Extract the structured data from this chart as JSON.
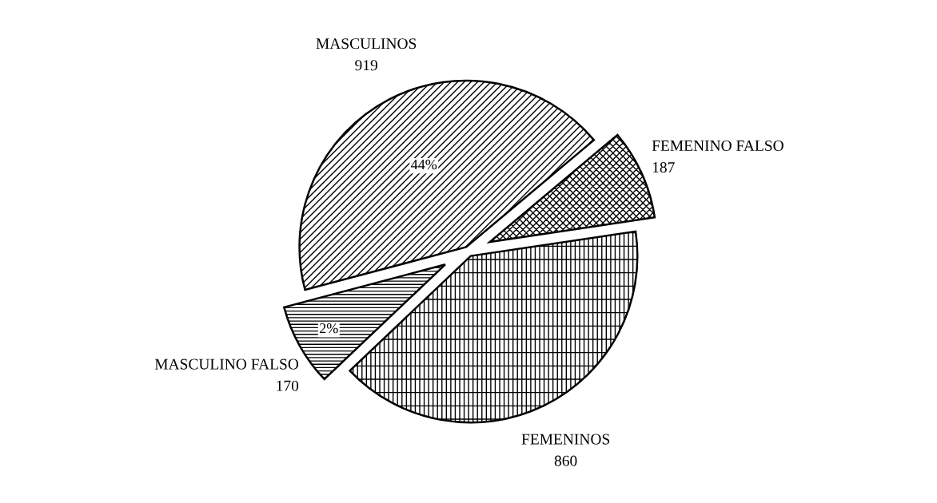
{
  "chart_data": {
    "type": "pie",
    "categories": [
      "MASCULINOS",
      "MASCULINO FALSO",
      "FEMENINOS",
      "FEMENINO FALSO"
    ],
    "values": [
      919,
      170,
      860,
      187
    ],
    "colors": [
      "#000000",
      "#000000",
      "#000000",
      "#000000"
    ],
    "annotations": [
      {
        "text": "44%",
        "x": "MASCULINOS"
      },
      {
        "text": "2%",
        "x": "MASCULINO FALSO"
      }
    ],
    "data_labels": true
  }
}
